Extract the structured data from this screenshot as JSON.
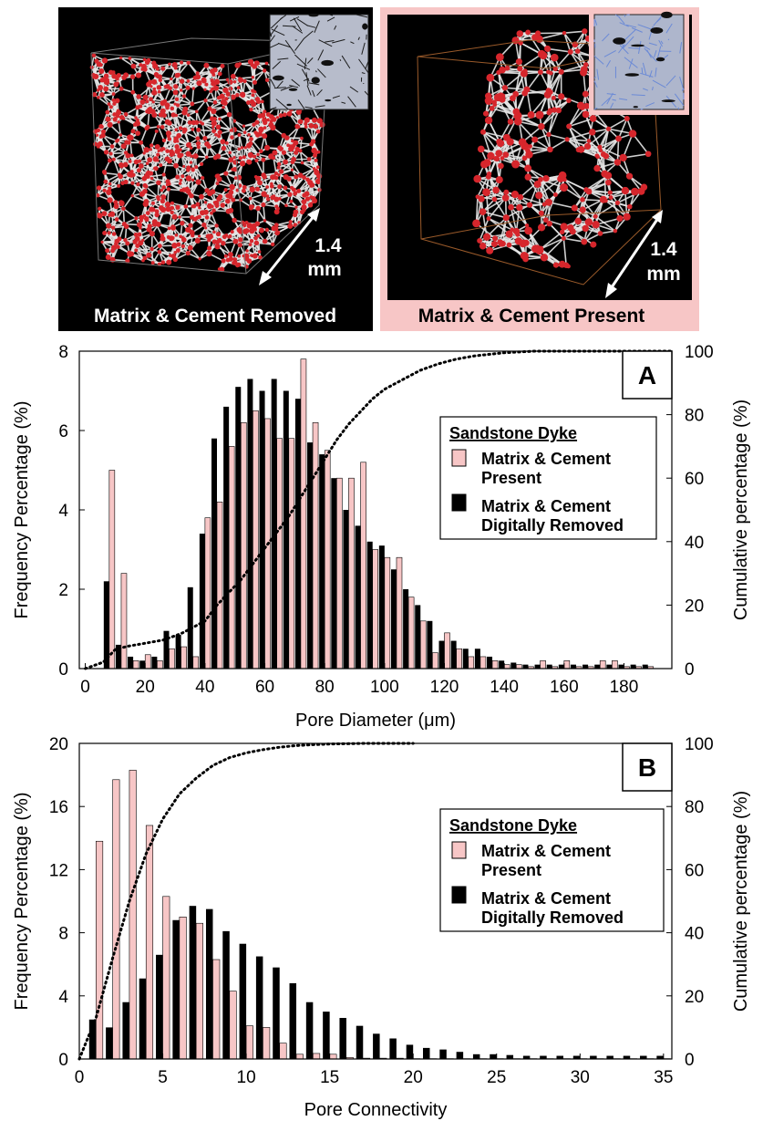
{
  "panels": [
    {
      "caption": "Matrix & Cement Removed",
      "scale_value": "1.4",
      "scale_unit": "mm",
      "background": "#000000",
      "border": "#000000"
    },
    {
      "caption": "Matrix & Cement Present",
      "scale_value": "1.4",
      "scale_unit": "mm",
      "background": "#000000",
      "border": "#f7c6c6"
    }
  ],
  "colors": {
    "present": "#f7c6c6",
    "removed": "#000000",
    "node": "#d6262c",
    "throat": "#e6e6e6",
    "inset_removed": "#b7bccb",
    "inset_present": "#6b8ad6"
  },
  "chart_data": [
    {
      "type": "bar",
      "panel_label": "A",
      "xlabel": "Pore Diameter (μm)",
      "ylabel": "Frequency Percentage (%)",
      "y2label": "Cumulative percentage (%)",
      "xlim": [
        -2,
        196
      ],
      "ylim": [
        0,
        8
      ],
      "y2lim": [
        0,
        100
      ],
      "x_ticks": [
        0,
        20,
        40,
        60,
        80,
        100,
        120,
        140,
        160,
        180
      ],
      "y_ticks": [
        0,
        2,
        4,
        6,
        8
      ],
      "y2_ticks": [
        0,
        20,
        40,
        60,
        80,
        100
      ],
      "legend": {
        "title": "Sandstone Dyke",
        "position": "right",
        "entries": [
          {
            "line1": "Matrix & Cement",
            "line2": "Present"
          },
          {
            "line1": "Matrix & Cement",
            "line2": "Digitally Removed"
          }
        ]
      },
      "x": [
        8,
        12,
        16,
        20,
        24,
        28,
        32,
        36,
        40,
        44,
        48,
        52,
        56,
        60,
        64,
        68,
        72,
        76,
        80,
        84,
        88,
        92,
        96,
        100,
        104,
        108,
        112,
        116,
        120,
        124,
        128,
        132,
        136,
        140,
        144,
        148,
        152,
        156,
        160,
        164,
        168,
        172,
        176,
        180,
        184,
        188
      ],
      "series": [
        {
          "name": "Matrix & Cement Present",
          "values": [
            5.0,
            2.4,
            0.2,
            0.35,
            0.2,
            0.5,
            0.55,
            0.3,
            3.8,
            4.2,
            5.6,
            6.2,
            6.5,
            6.3,
            5.8,
            5.8,
            7.8,
            6.2,
            5.5,
            4.8,
            4.8,
            5.2,
            3.0,
            2.8,
            2.8,
            1.8,
            1.2,
            0.4,
            0.9,
            0.5,
            0.3,
            0.3,
            0.2,
            0.1,
            0.1,
            0.05,
            0.2,
            0.05,
            0.2,
            0.05,
            0.05,
            0.2,
            0.2,
            0.05,
            0.05,
            0.05
          ]
        },
        {
          "name": "Matrix & Cement Digitally Removed",
          "values": [
            2.2,
            0.6,
            0.3,
            0.2,
            0.3,
            0.95,
            0.85,
            2.05,
            3.4,
            5.8,
            6.6,
            7.1,
            7.3,
            7.0,
            7.3,
            7.0,
            6.8,
            5.7,
            5.4,
            4.8,
            4.0,
            3.6,
            3.2,
            3.1,
            2.5,
            2.0,
            1.6,
            1.2,
            0.7,
            0.7,
            0.5,
            0.5,
            0.3,
            0.2,
            0.15,
            0.1,
            0.1,
            0.1,
            0.1,
            0.1,
            0.1,
            0.1,
            0.1,
            0.1,
            0.1,
            0.1
          ]
        }
      ],
      "cumulative": {
        "x": [
          0,
          6,
          10,
          14,
          20,
          26,
          32,
          36,
          40,
          44,
          48,
          52,
          56,
          60,
          64,
          68,
          72,
          76,
          80,
          84,
          88,
          92,
          96,
          100,
          106,
          112,
          118,
          124,
          130,
          140,
          150,
          196
        ],
        "y": [
          0,
          2,
          6,
          7,
          8,
          9,
          11,
          13,
          15,
          20,
          24,
          28,
          33,
          38,
          43,
          48,
          54,
          60,
          66,
          72,
          77,
          81,
          85,
          88,
          91,
          94,
          96,
          97.5,
          98.5,
          99.5,
          100,
          100
        ]
      }
    },
    {
      "type": "bar",
      "panel_label": "B",
      "xlabel": "Pore Connectivity",
      "ylabel": "Frequency Percentage (%)",
      "y2label": "Cumulative percentage (%)",
      "xlim": [
        0,
        35.5
      ],
      "ylim": [
        0,
        20
      ],
      "y2lim": [
        0,
        100
      ],
      "x_ticks": [
        0,
        5,
        10,
        15,
        20,
        25,
        30,
        35
      ],
      "y_ticks": [
        0,
        4,
        8,
        12,
        16,
        20
      ],
      "y2_ticks": [
        0,
        20,
        40,
        60,
        80,
        100
      ],
      "legend": {
        "title": "Sandstone Dyke",
        "position": "right",
        "entries": [
          {
            "line1": "Matrix & Cement",
            "line2": "Present"
          },
          {
            "line1": "Matrix & Cement",
            "line2": "Digitally Removed"
          }
        ]
      },
      "x": [
        1,
        2,
        3,
        4,
        5,
        6,
        7,
        8,
        9,
        10,
        11,
        12,
        13,
        14,
        15,
        16,
        17,
        18,
        19,
        20,
        21,
        22,
        23,
        24,
        25,
        26,
        27,
        28,
        29,
        30,
        31,
        32,
        33,
        34,
        35
      ],
      "series": [
        {
          "name": "Matrix & Cement Present",
          "values": [
            13.8,
            17.7,
            18.3,
            14.8,
            10.3,
            9.0,
            8.6,
            6.3,
            4.3,
            2.1,
            2.0,
            1.0,
            0.3,
            0.35,
            0.3,
            0.1,
            0.05,
            0.05,
            0.05,
            0.02,
            0.02,
            0.02,
            0.02,
            0.02,
            0.02,
            0.02,
            0.02,
            0.02,
            0.02,
            0.02,
            0.02,
            0.02,
            0.02,
            0.02,
            0.02
          ]
        },
        {
          "name": "Matrix & Cement Digitally Removed",
          "values": [
            2.5,
            2.0,
            3.6,
            5.1,
            6.6,
            8.8,
            9.7,
            9.5,
            8.1,
            7.3,
            6.5,
            5.8,
            4.8,
            3.6,
            3.0,
            2.6,
            2.1,
            1.6,
            1.3,
            0.9,
            0.7,
            0.6,
            0.45,
            0.3,
            0.3,
            0.25,
            0.2,
            0.2,
            0.2,
            0.2,
            0.2,
            0.2,
            0.2,
            0.2,
            0.2
          ]
        }
      ],
      "cumulative": {
        "x": [
          0,
          1,
          2,
          3,
          4,
          5,
          6,
          7,
          8,
          9,
          10,
          11,
          12,
          13,
          14,
          15,
          17,
          20
        ],
        "y": [
          0,
          13,
          32,
          50,
          65,
          76,
          84,
          89,
          93,
          95.5,
          97,
          98,
          98.8,
          99.3,
          99.6,
          99.8,
          100,
          100
        ]
      }
    }
  ]
}
